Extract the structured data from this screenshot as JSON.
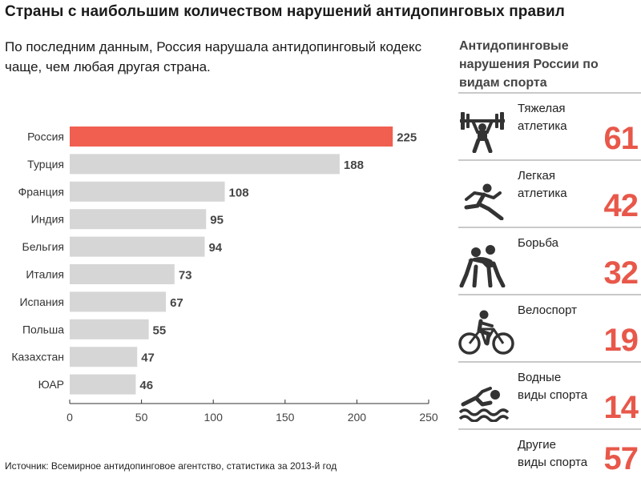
{
  "header": {
    "title": "Страны с наибольшим количеством нарушений антидопинговых правил",
    "subtitle": "По последним данным, Россия нарушала антидопинговый кодекс чаще, чем любая другая страна."
  },
  "footer": {
    "source": "Источник: Всемирное антидопинговое агентство, статистика за 2013-й год"
  },
  "colors": {
    "highlight": "#f05f4f",
    "bar": "#d6d6d6",
    "accent_text": "#e8584a"
  },
  "chart_data": {
    "type": "bar",
    "orientation": "horizontal",
    "categories": [
      "Россия",
      "Турция",
      "Франция",
      "Индия",
      "Бельгия",
      "Италия",
      "Испания",
      "Польша",
      "Казахстан",
      "ЮАР"
    ],
    "values": [
      225,
      188,
      108,
      95,
      94,
      73,
      67,
      55,
      47,
      46
    ],
    "highlight": "Россия",
    "xlim": [
      0,
      250
    ],
    "xticks": [
      0,
      50,
      100,
      150,
      200,
      250
    ],
    "grid": false
  },
  "sports_panel": {
    "heading": "Антидопинговые нарушения России по видам спорта",
    "items": [
      {
        "label": "Тяжелая\nатлетика",
        "value": "61",
        "icon": "weightlifting-icon"
      },
      {
        "label": "Легкая\nатлетика",
        "value": "42",
        "icon": "running-icon"
      },
      {
        "label": "Борьба",
        "value": "32",
        "icon": "wrestling-icon"
      },
      {
        "label": "Велоспорт",
        "value": "19",
        "icon": "cycling-icon"
      },
      {
        "label": "Водные\nвиды спорта",
        "value": "14",
        "icon": "swimming-icon"
      },
      {
        "label": "Другие\nвиды спорта",
        "value": "57",
        "icon": ""
      }
    ]
  }
}
